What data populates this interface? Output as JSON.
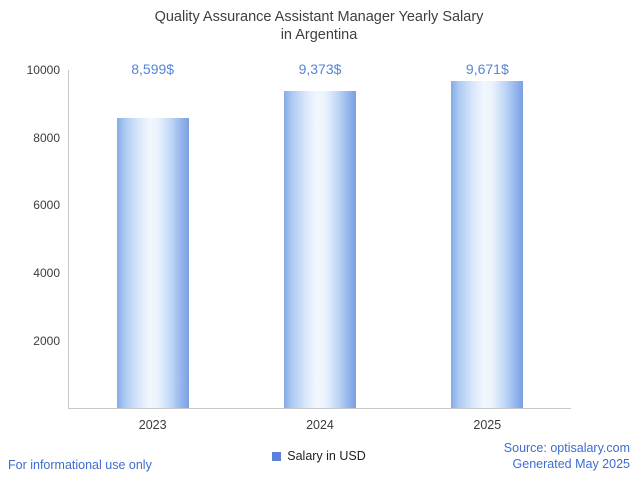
{
  "chart_data": {
    "type": "bar",
    "title": "Quality Assurance Assistant Manager Yearly Salary in Argentina",
    "title_lines": [
      "Quality Assurance Assistant Manager Yearly Salary",
      "in Argentina"
    ],
    "categories": [
      "2023",
      "2024",
      "2025"
    ],
    "values": [
      8599,
      9373,
      9671
    ],
    "value_labels": [
      "8,599$",
      "9,373$",
      "9,671$"
    ],
    "series": [
      {
        "name": "Salary in USD",
        "values": [
          8599,
          9373,
          9671
        ]
      }
    ],
    "xlabel": "",
    "ylabel": "",
    "ylim": [
      0,
      10000
    ],
    "yticks": [
      2000,
      4000,
      6000,
      8000,
      10000
    ],
    "grid": false,
    "legend_position": "bottom-center",
    "colors": {
      "bar_edge": "#7b9fe4",
      "bar_center": "#f2f8fe",
      "value_label": "#5585d6",
      "axis_line": "#c9c9c9",
      "axis_text": "#3c3c3c",
      "title_text": "#3f3f3f",
      "link_text": "#3e6cd0"
    }
  },
  "legend": {
    "label": "Salary in USD"
  },
  "footer": {
    "disclaimer": "For informational use only",
    "source": "Source: optisalary.com",
    "generated": "Generated May 2025"
  }
}
